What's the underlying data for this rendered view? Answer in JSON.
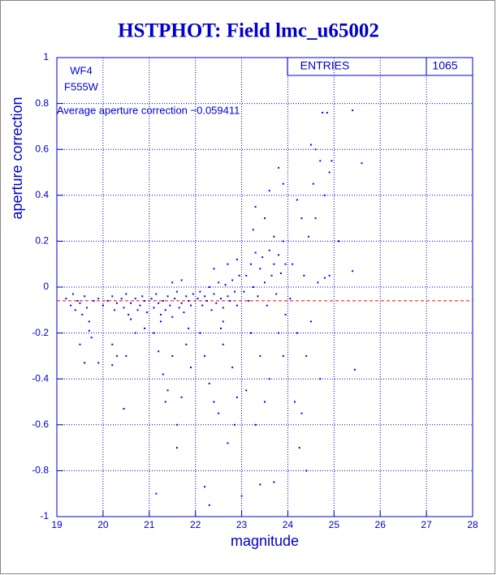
{
  "chart_data": {
    "type": "scatter",
    "title": "HSTPHOT: Field lmc_u65002",
    "xlabel": "magnitude",
    "ylabel": "aperture correction",
    "annotations": [
      "WF4",
      "F555W",
      "Average aperture correction −0.059411"
    ],
    "stats": {
      "label": "ENTRIES",
      "value": 1065
    },
    "mean_line": {
      "value": -0.059411,
      "color": "#ff0000"
    },
    "color": "#0000ff",
    "grid": true,
    "xlim": [
      19,
      28
    ],
    "xticks": [
      19,
      20,
      21,
      22,
      23,
      24,
      25,
      26,
      27,
      28
    ],
    "ylim": [
      -1,
      1
    ],
    "yticks": [
      -1,
      -0.8,
      -0.6,
      -0.4,
      -0.2,
      0,
      0.2,
      0.4,
      0.6,
      0.8,
      1
    ],
    "x": [
      19.2,
      19.3,
      19.35,
      19.4,
      19.45,
      19.5,
      19.55,
      19.6,
      19.65,
      19.7,
      19.8,
      19.9,
      20.0,
      19.5,
      19.75,
      19.6,
      19.9,
      19.7,
      20.1,
      20.2,
      20.25,
      20.3,
      20.4,
      20.45,
      20.5,
      20.55,
      20.6,
      20.7,
      20.75,
      20.8,
      20.85,
      20.9,
      20.95,
      20.3,
      20.5,
      20.2,
      20.45,
      20.7,
      20.9,
      20.6,
      20.2,
      21.05,
      21.1,
      21.15,
      21.2,
      21.25,
      21.3,
      21.35,
      21.4,
      21.45,
      21.5,
      21.55,
      21.6,
      21.65,
      21.7,
      21.75,
      21.8,
      21.85,
      21.9,
      21.95,
      21.1,
      21.2,
      21.3,
      21.4,
      21.5,
      21.6,
      21.7,
      21.8,
      21.9,
      21.15,
      21.6,
      21.35,
      21.25,
      21.85,
      21.5,
      21.7,
      22.05,
      22.1,
      22.15,
      22.2,
      22.25,
      22.3,
      22.35,
      22.4,
      22.45,
      22.5,
      22.55,
      22.6,
      22.65,
      22.7,
      22.75,
      22.8,
      22.85,
      22.9,
      22.95,
      22.1,
      22.2,
      22.3,
      22.4,
      22.5,
      22.6,
      22.7,
      22.8,
      22.9,
      22.2,
      22.3,
      22.6,
      22.85,
      22.4,
      22.7,
      22.9,
      22.55,
      23.05,
      23.1,
      23.15,
      23.2,
      23.25,
      23.3,
      23.35,
      23.4,
      23.45,
      23.5,
      23.55,
      23.6,
      23.65,
      23.7,
      23.75,
      23.8,
      23.85,
      23.9,
      23.95,
      23.3,
      23.5,
      23.6,
      23.7,
      23.8,
      23.9,
      23.2,
      23.4,
      23.5,
      23.6,
      23.7,
      23.8,
      23.1,
      23.3,
      23.9,
      23.0,
      23.4,
      23.25,
      23.95,
      24.05,
      24.1,
      24.2,
      24.3,
      24.35,
      24.4,
      24.45,
      24.5,
      24.55,
      24.6,
      24.65,
      24.7,
      24.75,
      24.8,
      24.85,
      24.9,
      24.2,
      24.3,
      24.4,
      24.25,
      24.15,
      24.6,
      24.7,
      24.8,
      24.9,
      24.95,
      24.5,
      25.4,
      25.6,
      25.4,
      25.45,
      25.1
    ],
    "y": [
      -0.05,
      -0.08,
      -0.03,
      -0.1,
      -0.06,
      -0.07,
      -0.12,
      -0.04,
      -0.09,
      -0.15,
      -0.06,
      -0.05,
      -0.08,
      -0.25,
      -0.22,
      -0.33,
      -0.33,
      -0.19,
      -0.06,
      -0.04,
      -0.1,
      -0.07,
      -0.05,
      -0.09,
      -0.03,
      -0.12,
      -0.07,
      -0.05,
      -0.1,
      -0.08,
      -0.04,
      -0.06,
      -0.11,
      -0.3,
      -0.3,
      -0.34,
      -0.53,
      -0.2,
      -0.18,
      -0.14,
      -0.25,
      -0.05,
      -0.09,
      -0.03,
      -0.07,
      -0.12,
      -0.06,
      -0.1,
      -0.04,
      -0.08,
      -0.13,
      -0.05,
      -0.02,
      -0.09,
      -0.07,
      -0.11,
      -0.04,
      -0.06,
      -0.08,
      -0.03,
      -0.2,
      -0.28,
      -0.38,
      -0.45,
      -0.3,
      -0.6,
      -0.48,
      -0.25,
      -0.35,
      -0.9,
      -0.7,
      -0.5,
      -0.15,
      -0.18,
      0.02,
      0.03,
      -0.05,
      -0.02,
      -0.08,
      -0.04,
      -0.06,
      0.0,
      -0.1,
      -0.03,
      -0.07,
      0.02,
      -0.05,
      -0.09,
      0.01,
      -0.04,
      -0.06,
      0.03,
      -0.02,
      -0.08,
      0.05,
      -0.2,
      -0.3,
      -0.42,
      -0.5,
      -0.55,
      -0.25,
      -0.68,
      -0.35,
      -0.48,
      -0.87,
      -0.95,
      -0.15,
      -0.6,
      0.08,
      0.1,
      0.12,
      -0.18,
      -0.02,
      0.05,
      -0.06,
      0.1,
      0.0,
      0.15,
      -0.04,
      0.08,
      0.13,
      0.02,
      -0.08,
      0.16,
      0.05,
      0.1,
      -0.03,
      0.14,
      0.06,
      0.2,
      0.1,
      0.35,
      0.3,
      0.42,
      0.22,
      0.52,
      0.45,
      -0.2,
      -0.3,
      -0.5,
      -0.4,
      -0.85,
      -0.2,
      -0.45,
      -0.6,
      -0.3,
      -0.91,
      -0.86,
      0.25,
      -0.12,
      -0.05,
      0.1,
      -0.2,
      0.3,
      0.05,
      -0.3,
      0.22,
      -0.15,
      0.45,
      0.6,
      0.02,
      0.55,
      0.76,
      0.4,
      0.76,
      0.5,
      0.38,
      -0.55,
      -0.8,
      -0.7,
      -0.5,
      0.3,
      -0.4,
      0.04,
      0.05,
      0.55,
      0.62,
      0.77,
      0.54,
      0.07,
      -0.36,
      0.2
    ]
  }
}
